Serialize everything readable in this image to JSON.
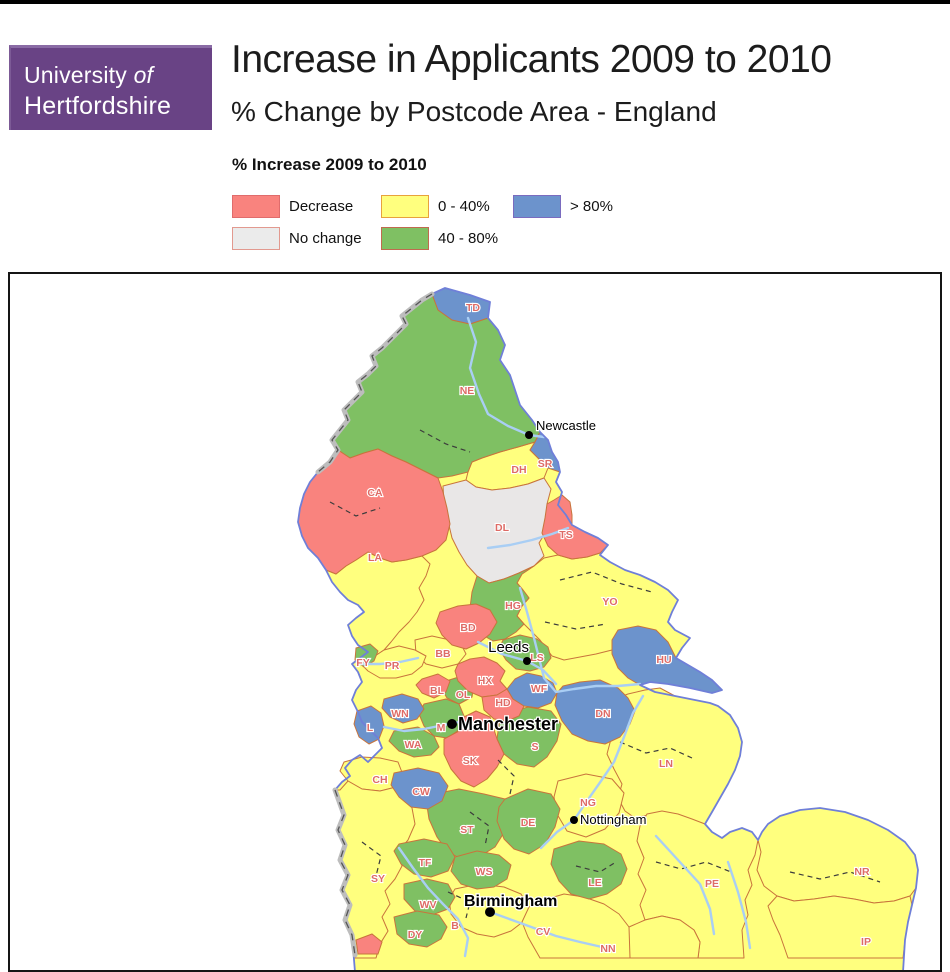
{
  "logo": {
    "line1_main": "University",
    "line1_of": "of",
    "line2": "Hertfordshire",
    "bg_color": "#694385"
  },
  "header": {
    "title": "Increase in Applicants 2009 to 2010",
    "subtitle": "% Change by Postcode Area - England"
  },
  "legend": {
    "title": "% Increase 2009 to 2010",
    "items": [
      {
        "label": "Decrease",
        "category": "decrease",
        "fill": "#F9837E",
        "border": "#E06C6C"
      },
      {
        "label": "0 - 40%",
        "category": "pct_0_40",
        "fill": "#FFFF7E",
        "border": "#E8A23C"
      },
      {
        "label": "> 80%",
        "category": "pct_gt_80",
        "fill": "#6C93CC",
        "border": "#7A6BBF"
      },
      {
        "label": "No change",
        "category": "no_change",
        "fill": "#EBEBEB",
        "border": "#E2998F"
      },
      {
        "label": "40 - 80%",
        "category": "pct_40_80",
        "fill": "#7FC063",
        "border": "#C06A4F"
      }
    ]
  },
  "map": {
    "colors": {
      "decrease": "#F9837E",
      "no_change": "#E9E7E7",
      "pct_0_40": "#FFFF7E",
      "pct_40_80": "#7FC063",
      "pct_gt_80": "#6C93CC"
    },
    "style": {
      "region_label_color": "#DE6B66",
      "region_border_color": "#C8743C",
      "coast_color": "#6F7FD8",
      "river_color": "#A9CEF4",
      "country_border_color": "#BDBDBD",
      "county_dash_color": "#3C3C3C"
    },
    "regions": [
      {
        "code": "TD",
        "category": "pct_gt_80"
      },
      {
        "code": "NE",
        "category": "pct_40_80"
      },
      {
        "code": "SR",
        "category": "pct_gt_80"
      },
      {
        "code": "DH",
        "category": "pct_0_40"
      },
      {
        "code": "CA",
        "category": "decrease"
      },
      {
        "code": "DL",
        "category": "no_change"
      },
      {
        "code": "TS",
        "category": "decrease"
      },
      {
        "code": "LA",
        "category": "pct_0_40"
      },
      {
        "code": "YO",
        "category": "pct_0_40"
      },
      {
        "code": "HG",
        "category": "pct_40_80"
      },
      {
        "code": "BD",
        "category": "decrease"
      },
      {
        "code": "BB",
        "category": "pct_0_40"
      },
      {
        "code": "FY",
        "category": "pct_40_80"
      },
      {
        "code": "PR",
        "category": "pct_0_40"
      },
      {
        "code": "LS",
        "category": "pct_40_80"
      },
      {
        "code": "HU",
        "category": "pct_gt_80"
      },
      {
        "code": "HX",
        "category": "decrease"
      },
      {
        "code": "WF",
        "category": "pct_gt_80"
      },
      {
        "code": "OL",
        "category": "pct_40_80"
      },
      {
        "code": "BL",
        "category": "decrease"
      },
      {
        "code": "HD",
        "category": "decrease"
      },
      {
        "code": "DN",
        "category": "pct_gt_80"
      },
      {
        "code": "WN",
        "category": "pct_gt_80"
      },
      {
        "code": "L",
        "category": "pct_gt_80"
      },
      {
        "code": "M",
        "category": "pct_40_80"
      },
      {
        "code": "WA",
        "category": "pct_40_80"
      },
      {
        "code": "S",
        "category": "pct_40_80"
      },
      {
        "code": "SK",
        "category": "decrease"
      },
      {
        "code": "LN",
        "category": "pct_0_40"
      },
      {
        "code": "CH",
        "category": "pct_0_40"
      },
      {
        "code": "CW",
        "category": "pct_gt_80"
      },
      {
        "code": "NG",
        "category": "pct_0_40"
      },
      {
        "code": "ST",
        "category": "pct_40_80"
      },
      {
        "code": "DE",
        "category": "pct_40_80"
      },
      {
        "code": "TF",
        "category": "pct_40_80"
      },
      {
        "code": "WS",
        "category": "pct_40_80"
      },
      {
        "code": "SY",
        "category": "pct_0_40"
      },
      {
        "code": "LE",
        "category": "pct_40_80"
      },
      {
        "code": "PE",
        "category": "pct_0_40"
      },
      {
        "code": "NR",
        "category": "pct_0_40"
      },
      {
        "code": "WV",
        "category": "pct_40_80"
      },
      {
        "code": "DY",
        "category": "pct_40_80"
      },
      {
        "code": "B",
        "category": "pct_0_40"
      },
      {
        "code": "CV",
        "category": "pct_0_40"
      },
      {
        "code": "NN",
        "category": "pct_0_40"
      },
      {
        "code": "IP",
        "category": "pct_0_40"
      }
    ],
    "cities": [
      {
        "name": "Newcastle",
        "bold": false
      },
      {
        "name": "Leeds",
        "bold": false
      },
      {
        "name": "Manchester",
        "bold": true
      },
      {
        "name": "Nottingham",
        "bold": false
      },
      {
        "name": "Birmingham",
        "bold": true
      }
    ]
  }
}
